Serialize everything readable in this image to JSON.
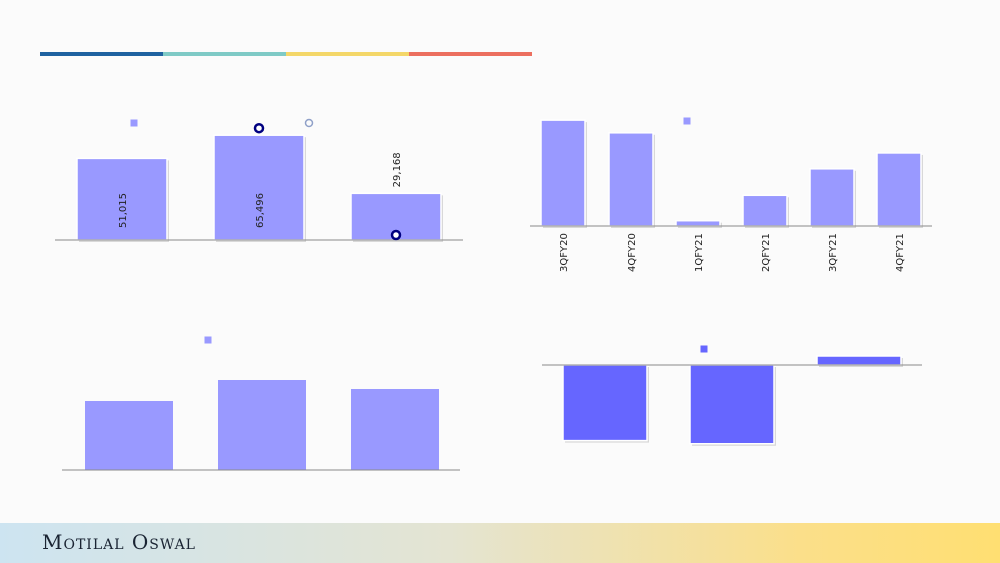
{
  "colors": {
    "bar": "#9999ff",
    "bar_dark": "#6666ff",
    "axis": "#8a8a8a",
    "marker": "#000080",
    "legend_open_circle": "#8fa0c8",
    "stripe": [
      "#1f62a0",
      "#7fcac6",
      "#f4d769",
      "#ec6f5f"
    ]
  },
  "footer": {
    "brand": "Motilal Oswal"
  },
  "chart_data": [
    {
      "type": "bar",
      "categories": [
        "",
        "",
        ""
      ],
      "values": [
        51015,
        65496,
        29168
      ],
      "value_labels": [
        "51,015",
        "65,496",
        "29,168"
      ],
      "markers": [
        null,
        65496,
        0
      ],
      "ylim": [
        0,
        75000
      ],
      "legend": {
        "placement": "top",
        "items": [
          "square",
          "open-circle"
        ]
      },
      "title": "",
      "xlabel": "",
      "ylabel": ""
    },
    {
      "type": "bar",
      "categories": [
        "3QFY20",
        "4QFY20",
        "1QFY21",
        "2QFY21",
        "3QFY21",
        "4QFY21"
      ],
      "values": [
        100,
        88,
        5,
        29,
        54,
        69
      ],
      "ylim": [
        0,
        102
      ],
      "legend": {
        "placement": "top",
        "items": [
          "square"
        ]
      },
      "title": "",
      "xlabel": "",
      "ylabel": ""
    },
    {
      "type": "bar",
      "categories": [
        "",
        "",
        ""
      ],
      "values": [
        69,
        90,
        81
      ],
      "ylim": [
        0,
        100
      ],
      "legend": {
        "placement": "top",
        "items": [
          "square"
        ]
      },
      "title": "",
      "xlabel": "",
      "ylabel": ""
    },
    {
      "type": "bar",
      "categories": [
        "",
        "",
        ""
      ],
      "values": [
        -72,
        -75,
        9
      ],
      "ylim": [
        -100,
        12
      ],
      "legend": {
        "placement": "top",
        "items": [
          "square"
        ]
      },
      "title": "",
      "xlabel": "",
      "ylabel": ""
    }
  ]
}
